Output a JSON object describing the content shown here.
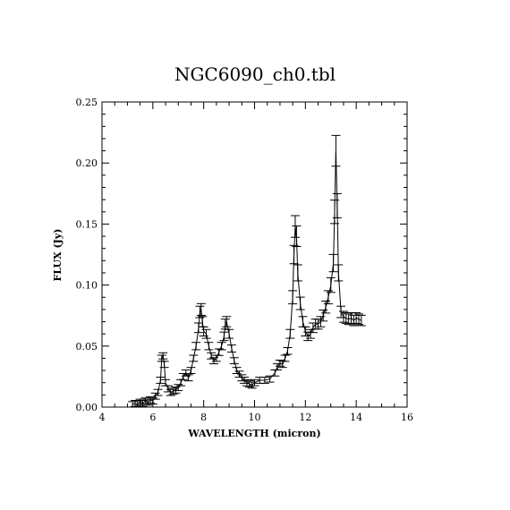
{
  "chart_data": {
    "type": "line",
    "title": "NGC6090_ch0.tbl",
    "xlabel": "WAVELENGTH (micron)",
    "ylabel": "FLUX (Jy)",
    "xlim": [
      4,
      16
    ],
    "ylim": [
      0.0,
      0.25
    ],
    "x_ticks": [
      4,
      6,
      8,
      10,
      12,
      14,
      16
    ],
    "y_ticks": [
      0.0,
      0.05,
      0.1,
      0.15,
      0.2,
      0.25
    ],
    "x_tick_labels": [
      "4",
      "6",
      "8",
      "10",
      "12",
      "14",
      "16"
    ],
    "y_tick_labels": [
      "0.00",
      "0.05",
      "0.10",
      "0.15",
      "0.20",
      "0.25"
    ],
    "grid": false,
    "error_bars": true,
    "series": [
      {
        "x": [
          5.2,
          5.3,
          5.4,
          5.5,
          5.6,
          5.7,
          5.8,
          5.9,
          6.0,
          6.1,
          6.2,
          6.3,
          6.35,
          6.4,
          6.45,
          6.5,
          6.6,
          6.7,
          6.8,
          6.9,
          7.0,
          7.1,
          7.2,
          7.3,
          7.4,
          7.5,
          7.6,
          7.7,
          7.8,
          7.85,
          7.9,
          7.95,
          8.0,
          8.1,
          8.2,
          8.3,
          8.4,
          8.5,
          8.6,
          8.7,
          8.8,
          8.85,
          8.9,
          9.0,
          9.1,
          9.2,
          9.3,
          9.4,
          9.5,
          9.6,
          9.7,
          9.8,
          9.9,
          10.0,
          10.2,
          10.4,
          10.6,
          10.8,
          10.9,
          11.0,
          11.1,
          11.2,
          11.3,
          11.4,
          11.5,
          11.55,
          11.6,
          11.65,
          11.7,
          11.8,
          11.9,
          12.0,
          12.1,
          12.2,
          12.3,
          12.4,
          12.5,
          12.6,
          12.7,
          12.8,
          12.9,
          13.0,
          13.1,
          13.15,
          13.2,
          13.25,
          13.3,
          13.4,
          13.5,
          13.6,
          13.7,
          13.8,
          13.9,
          14.0,
          14.1,
          14.2
        ],
        "y": [
          0.002,
          0.003,
          0.002,
          0.004,
          0.003,
          0.005,
          0.004,
          0.006,
          0.005,
          0.009,
          0.012,
          0.022,
          0.04,
          0.042,
          0.035,
          0.02,
          0.015,
          0.012,
          0.013,
          0.014,
          0.016,
          0.02,
          0.025,
          0.028,
          0.024,
          0.03,
          0.04,
          0.05,
          0.065,
          0.078,
          0.08,
          0.07,
          0.062,
          0.06,
          0.05,
          0.042,
          0.038,
          0.04,
          0.045,
          0.05,
          0.058,
          0.068,
          0.07,
          0.06,
          0.048,
          0.038,
          0.03,
          0.027,
          0.024,
          0.022,
          0.02,
          0.019,
          0.018,
          0.02,
          0.022,
          0.022,
          0.023,
          0.028,
          0.033,
          0.036,
          0.035,
          0.04,
          0.046,
          0.06,
          0.09,
          0.125,
          0.148,
          0.14,
          0.11,
          0.085,
          0.07,
          0.062,
          0.058,
          0.06,
          0.065,
          0.068,
          0.068,
          0.07,
          0.075,
          0.082,
          0.09,
          0.1,
          0.118,
          0.16,
          0.21,
          0.165,
          0.11,
          0.078,
          0.074,
          0.073,
          0.072,
          0.073,
          0.071,
          0.073,
          0.072,
          0.071
        ]
      }
    ]
  }
}
